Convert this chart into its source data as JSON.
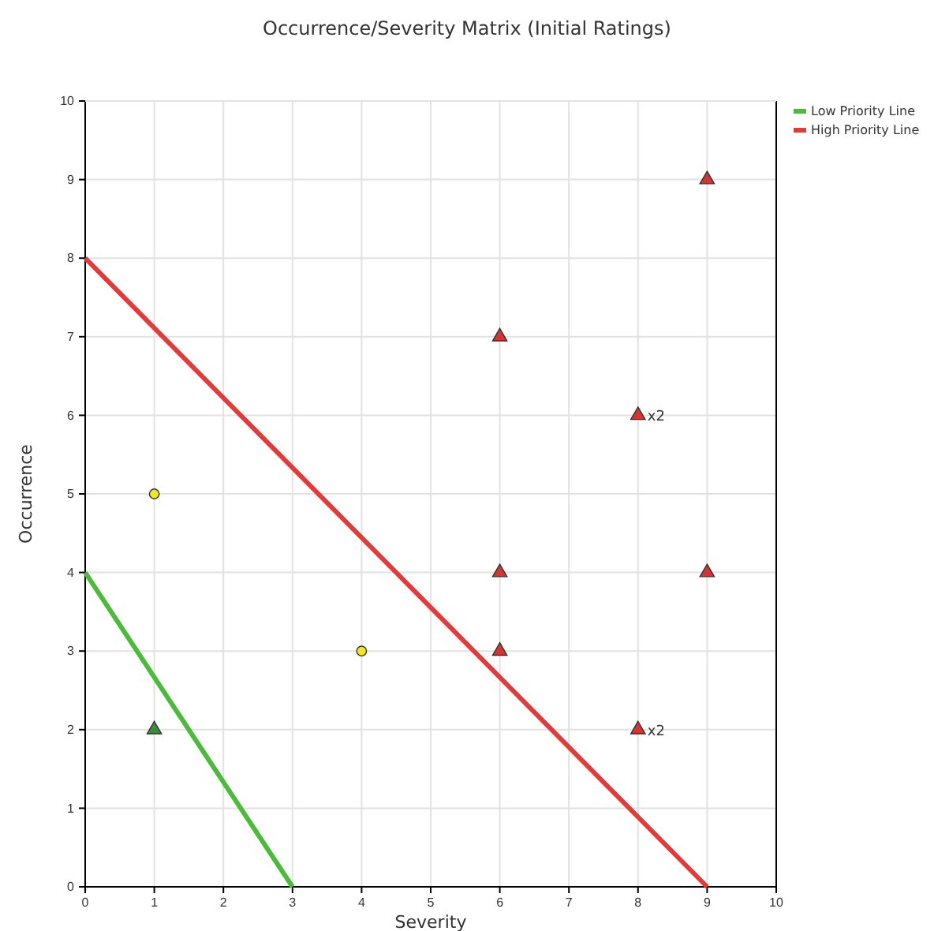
{
  "chart_data": {
    "type": "scatter",
    "title": "Occurrence/Severity Matrix (Initial Ratings)",
    "xlabel": "Severity",
    "ylabel": "Occurrence",
    "xlim": [
      0,
      10
    ],
    "ylim": [
      0,
      10
    ],
    "xticks": [
      0,
      1,
      2,
      3,
      4,
      5,
      6,
      7,
      8,
      9,
      10
    ],
    "yticks": [
      0,
      1,
      2,
      3,
      4,
      5,
      6,
      7,
      8,
      9,
      10
    ],
    "grid": true,
    "legend": "top right",
    "series": [
      {
        "name": "Low Priority Line",
        "type": "line",
        "color": "#4cbb3c",
        "marker": "none",
        "x": [
          0,
          3
        ],
        "values": [
          4,
          0
        ]
      },
      {
        "name": "High Priority Line",
        "type": "line",
        "color": "#e03c3c",
        "marker": "none",
        "x": [
          0,
          9
        ],
        "values": [
          8,
          0
        ]
      },
      {
        "color": "#f2e622",
        "marker": "circle",
        "x": [
          1,
          4
        ],
        "values": [
          5,
          3
        ]
      },
      {
        "color": "#3c8c3c",
        "marker": "triangle",
        "x": [
          1
        ],
        "values": [
          2
        ]
      },
      {
        "color": "#d63333",
        "marker": "triangle",
        "x": [
          6,
          8,
          9,
          6,
          9,
          6,
          8
        ],
        "values": [
          7,
          6,
          9,
          4,
          4,
          3,
          2
        ]
      }
    ],
    "annotations": [
      {
        "text": "x2",
        "x": 8,
        "y": 6
      },
      {
        "text": "x2",
        "x": 8,
        "y": 2
      }
    ]
  }
}
